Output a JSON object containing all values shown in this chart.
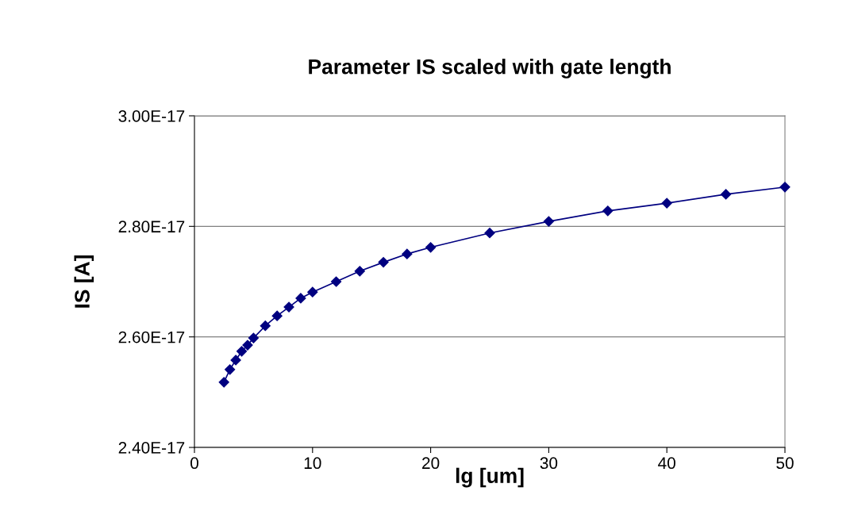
{
  "chart_data": {
    "type": "line",
    "title": "Parameter IS scaled with gate length",
    "xlabel": "lg [um]",
    "ylabel": "IS [A]",
    "x": [
      2.5,
      3,
      3.5,
      4,
      4.5,
      5,
      6,
      7,
      8,
      9,
      10,
      12,
      14,
      16,
      18,
      20,
      25,
      30,
      35,
      40,
      45,
      50
    ],
    "series": [
      {
        "color": "#000080",
        "values": [
          2.518e-17,
          2.541e-17,
          2.558e-17,
          2.574e-17,
          2.585e-17,
          2.598e-17,
          2.62e-17,
          2.638e-17,
          2.654e-17,
          2.67e-17,
          2.681e-17,
          2.7e-17,
          2.719e-17,
          2.735e-17,
          2.75e-17,
          2.762e-17,
          2.788e-17,
          2.809e-17,
          2.828e-17,
          2.842e-17,
          2.858e-17,
          2.871e-17
        ]
      }
    ],
    "xlim": [
      0,
      50
    ],
    "xticks": [
      0,
      10,
      20,
      30,
      40,
      50
    ],
    "ylim": [
      2.4e-17,
      3e-17
    ],
    "yticks": [
      {
        "value": 2.4e-17,
        "label": "2.40E-17"
      },
      {
        "value": 2.6e-17,
        "label": "2.60E-17"
      },
      {
        "value": 2.8e-17,
        "label": "2.80E-17"
      },
      {
        "value": 3e-17,
        "label": "3.00E-17"
      }
    ],
    "grid": "y",
    "marker": "diamond",
    "line_style": "solid"
  }
}
